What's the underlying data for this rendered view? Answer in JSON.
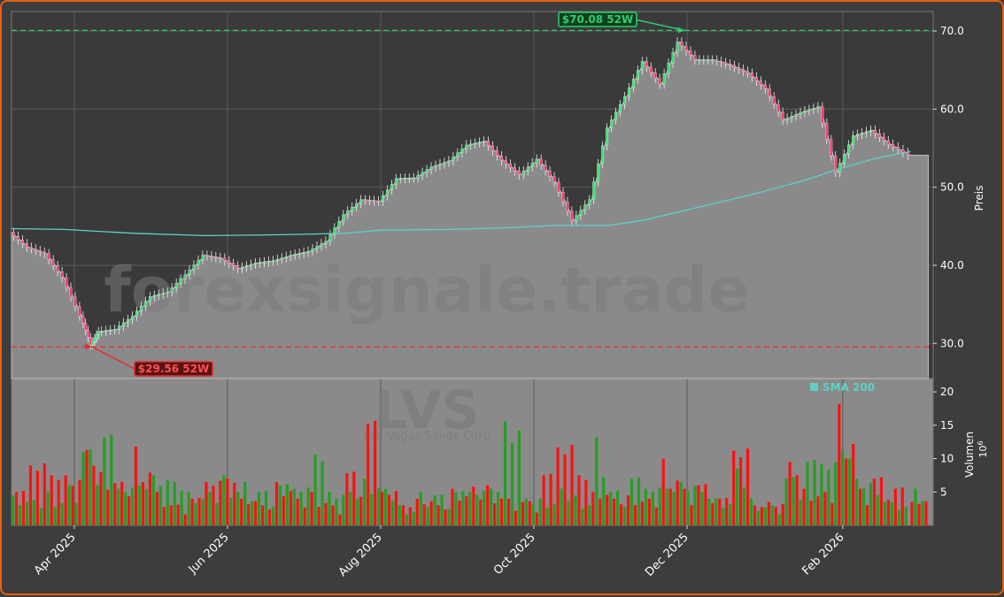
{
  "colors": {
    "background": "#3d3d3d",
    "panel_fill": "#8a8a8a",
    "up": "#22a022",
    "down": "#ff1010",
    "sma": "#5fd0c8",
    "high_line": "#2ecc71",
    "low_line": "#e03030",
    "frame": "#e8600a"
  },
  "watermark": {
    "brand": "forexsignale.trade",
    "ticker": "LVS",
    "company": "Las Vegas Sands Corp"
  },
  "chart_data": [
    {
      "type": "line",
      "subtype": "area-with-candlesticks",
      "ticker": "LVS",
      "ylabel": "Preis",
      "ylim": [
        25.5,
        72.5
      ],
      "yticks": [
        "30.0",
        "40.0",
        "50.0",
        "60.0",
        "70.0"
      ],
      "xlabel": "",
      "xticks": [
        "Apr 2025",
        "Jun 2025",
        "Aug 2025",
        "Oct 2025",
        "Dec 2025",
        "Feb 2026"
      ],
      "xtick_dates": [
        "2025-04-01",
        "2025-06-01",
        "2025-08-01",
        "2025-10-01",
        "2025-12-01",
        "2026-02-01"
      ],
      "x_range": [
        "2025-03-07",
        "2026-03-09"
      ],
      "last_date": "2026-02-28",
      "grid": true,
      "legend": "top-right",
      "legend_entries": [
        "SMA 200"
      ],
      "annotations": [
        {
          "text": "$70.08 52W",
          "value": 70.08,
          "date": "2025-11-30",
          "kind": "high"
        },
        {
          "text": "$29.56 52W",
          "value": 29.56,
          "date": "2025-04-08",
          "kind": "low"
        }
      ],
      "close_series": [
        [
          "2025-03-07",
          44.2
        ],
        [
          "2025-03-14",
          42.3
        ],
        [
          "2025-03-21",
          41.5
        ],
        [
          "2025-03-28",
          38.4
        ],
        [
          "2025-04-04",
          33.5
        ],
        [
          "2025-04-08",
          29.8
        ],
        [
          "2025-04-11",
          31.5
        ],
        [
          "2025-04-18",
          31.8
        ],
        [
          "2025-04-25",
          33.5
        ],
        [
          "2025-05-02",
          36.0
        ],
        [
          "2025-05-09",
          36.6
        ],
        [
          "2025-05-16",
          38.8
        ],
        [
          "2025-05-23",
          41.3
        ],
        [
          "2025-05-30",
          40.9
        ],
        [
          "2025-06-06",
          39.6
        ],
        [
          "2025-06-13",
          40.3
        ],
        [
          "2025-06-20",
          40.6
        ],
        [
          "2025-06-27",
          41.3
        ],
        [
          "2025-07-04",
          41.8
        ],
        [
          "2025-07-11",
          43.1
        ],
        [
          "2025-07-18",
          46.5
        ],
        [
          "2025-07-25",
          48.4
        ],
        [
          "2025-08-01",
          48.2
        ],
        [
          "2025-08-08",
          51.1
        ],
        [
          "2025-08-15",
          51.2
        ],
        [
          "2025-08-22",
          52.6
        ],
        [
          "2025-08-29",
          53.4
        ],
        [
          "2025-09-05",
          55.4
        ],
        [
          "2025-09-12",
          55.9
        ],
        [
          "2025-09-19",
          53.4
        ],
        [
          "2025-09-26",
          51.6
        ],
        [
          "2025-10-03",
          53.6
        ],
        [
          "2025-10-10",
          50.6
        ],
        [
          "2025-10-17",
          45.7
        ],
        [
          "2025-10-24",
          48.4
        ],
        [
          "2025-10-31",
          57.6
        ],
        [
          "2025-11-07",
          61.6
        ],
        [
          "2025-11-14",
          66.1
        ],
        [
          "2025-11-21",
          63.2
        ],
        [
          "2025-11-28",
          68.6
        ],
        [
          "2025-12-05",
          66.3
        ],
        [
          "2025-12-12",
          66.3
        ],
        [
          "2025-12-19",
          65.6
        ],
        [
          "2025-12-26",
          64.6
        ],
        [
          "2026-01-02",
          62.6
        ],
        [
          "2026-01-09",
          58.6
        ],
        [
          "2026-01-16",
          59.6
        ],
        [
          "2026-01-23",
          60.3
        ],
        [
          "2026-01-30",
          51.9
        ],
        [
          "2026-02-06",
          56.6
        ],
        [
          "2026-02-13",
          57.3
        ],
        [
          "2026-02-20",
          55.5
        ],
        [
          "2026-02-28",
          54.1
        ]
      ],
      "sma200": [
        [
          "2025-03-07",
          44.7
        ],
        [
          "2025-03-28",
          44.6
        ],
        [
          "2025-04-25",
          44.1
        ],
        [
          "2025-05-23",
          43.8
        ],
        [
          "2025-06-20",
          43.9
        ],
        [
          "2025-07-18",
          44.1
        ],
        [
          "2025-08-01",
          44.5
        ],
        [
          "2025-08-29",
          44.6
        ],
        [
          "2025-09-19",
          44.8
        ],
        [
          "2025-10-10",
          45.1
        ],
        [
          "2025-10-31",
          45.1
        ],
        [
          "2025-11-14",
          45.8
        ],
        [
          "2025-12-05",
          47.4
        ],
        [
          "2025-12-26",
          49.0
        ],
        [
          "2026-01-16",
          50.8
        ],
        [
          "2026-01-30",
          52.3
        ],
        [
          "2026-02-13",
          53.6
        ],
        [
          "2026-02-28",
          54.6
        ]
      ]
    },
    {
      "type": "bar",
      "ylabel": "Volumen",
      "scale_label": "10^6",
      "ylim": [
        0,
        22
      ],
      "yticks": [
        "5",
        "10",
        "15",
        "20"
      ],
      "volume_weeks": [
        {
          "date": "2025-03-07",
          "up": 4.5,
          "down": 5.0
        },
        {
          "date": "2025-03-14",
          "up": 3.8,
          "down": 9.0
        },
        {
          "date": "2025-03-21",
          "up": 5.0,
          "down": 7.5
        },
        {
          "date": "2025-03-28",
          "up": 6.0,
          "down": 7.5
        },
        {
          "date": "2025-04-04",
          "up": 11.0,
          "down": 11.3
        },
        {
          "date": "2025-04-11",
          "up": 13.2,
          "down": 8.0
        },
        {
          "date": "2025-04-18",
          "up": 5.5,
          "down": 6.5
        },
        {
          "date": "2025-04-25",
          "up": 6.0,
          "down": 11.8
        },
        {
          "date": "2025-05-02",
          "up": 7.5,
          "down": 5.0
        },
        {
          "date": "2025-05-09",
          "up": 6.5,
          "down": 3.0
        },
        {
          "date": "2025-05-16",
          "up": 5.0,
          "down": 4.0
        },
        {
          "date": "2025-05-23",
          "up": 5.0,
          "down": 6.5
        },
        {
          "date": "2025-05-30",
          "up": 7.5,
          "down": 7.0
        },
        {
          "date": "2025-06-06",
          "up": 6.5,
          "down": 4.0
        },
        {
          "date": "2025-06-13",
          "up": 5.0,
          "down": 3.0
        },
        {
          "date": "2025-06-20",
          "up": 6.0,
          "down": 6.5
        },
        {
          "date": "2025-06-27",
          "up": 5.5,
          "down": 4.0
        },
        {
          "date": "2025-07-04",
          "up": 10.6,
          "down": 5.0
        },
        {
          "date": "2025-07-11",
          "up": 5.0,
          "down": 3.0
        },
        {
          "date": "2025-07-18",
          "up": 5.0,
          "down": 7.8
        },
        {
          "date": "2025-07-25",
          "up": 7.0,
          "down": 15.2
        },
        {
          "date": "2025-08-01",
          "up": 5.5,
          "down": 5.0
        },
        {
          "date": "2025-08-08",
          "up": 3.0,
          "down": 3.0
        },
        {
          "date": "2025-08-15",
          "up": 5.0,
          "down": 4.0
        },
        {
          "date": "2025-08-22",
          "up": 4.5,
          "down": 3.0
        },
        {
          "date": "2025-08-29",
          "up": 5.0,
          "down": 5.5
        },
        {
          "date": "2025-09-05",
          "up": 5.0,
          "down": 5.8
        },
        {
          "date": "2025-09-12",
          "up": 5.5,
          "down": 6.0
        },
        {
          "date": "2025-09-19",
          "up": 15.6,
          "down": 4.0
        },
        {
          "date": "2025-09-26",
          "up": 4.0,
          "down": 3.5
        },
        {
          "date": "2025-10-03",
          "up": 4.0,
          "down": 7.5
        },
        {
          "date": "2025-10-10",
          "up": 5.5,
          "down": 11.7
        },
        {
          "date": "2025-10-17",
          "up": 4.5,
          "down": 7.5
        },
        {
          "date": "2025-10-24",
          "up": 13.2,
          "down": 5.0
        },
        {
          "date": "2025-10-31",
          "up": 5.0,
          "down": 4.0
        },
        {
          "date": "2025-11-07",
          "up": 7.0,
          "down": 4.5
        },
        {
          "date": "2025-11-14",
          "up": 5.5,
          "down": 4.0
        },
        {
          "date": "2025-11-21",
          "up": 5.5,
          "down": 10.0
        },
        {
          "date": "2025-11-28",
          "up": 6.5,
          "down": 5.5
        },
        {
          "date": "2025-12-05",
          "up": 5.0,
          "down": 6.0
        },
        {
          "date": "2025-12-12",
          "up": 4.0,
          "down": 4.0
        },
        {
          "date": "2025-12-19",
          "up": 8.5,
          "down": 11.2
        },
        {
          "date": "2025-12-26",
          "up": 4.0,
          "down": 3.0
        },
        {
          "date": "2026-01-02",
          "up": 3.0,
          "down": 3.5
        },
        {
          "date": "2026-01-09",
          "up": 7.0,
          "down": 9.5
        },
        {
          "date": "2026-01-16",
          "up": 9.5,
          "down": 5.5
        },
        {
          "date": "2026-01-23",
          "up": 9.2,
          "down": 5.0
        },
        {
          "date": "2026-01-30",
          "up": 11.0,
          "down": 18.2
        },
        {
          "date": "2026-02-06",
          "up": 7.0,
          "down": 5.5
        },
        {
          "date": "2026-02-13",
          "up": 4.5,
          "down": 7.0
        },
        {
          "date": "2026-02-20",
          "up": 3.5,
          "down": 5.5
        },
        {
          "date": "2026-02-28",
          "up": 5.5,
          "down": 3.5
        }
      ]
    }
  ]
}
